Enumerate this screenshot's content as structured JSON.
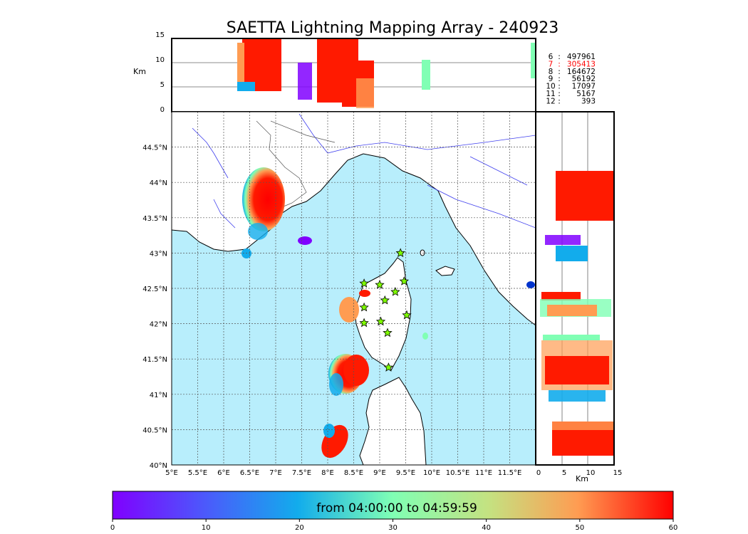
{
  "title": "SAETTA Lightning Mapping Array - 240923",
  "top_panel": {
    "ylabel": "Km",
    "yticks": [
      "15",
      "10",
      "5",
      "0"
    ]
  },
  "right_panel": {
    "xlabel": "Km",
    "xticks": [
      "0",
      "5",
      "10",
      "15"
    ]
  },
  "map": {
    "lat_labels": [
      "44.5°N",
      "44°N",
      "43.5°N",
      "43°N",
      "42.5°N",
      "42°N",
      "41.5°N",
      "41°N",
      "40.5°N",
      "40°N"
    ],
    "lon_labels": [
      "5°E",
      "5.5°E",
      "6°E",
      "6.5°E",
      "7°E",
      "7.5°E",
      "8°E",
      "8.5°E",
      "9°E",
      "9.5°E",
      "10°E",
      "10.5°E",
      "11°E",
      "11.5°E"
    ],
    "lon_range": [
      5,
      12
    ],
    "lat_range": [
      40,
      45
    ],
    "sea_color": "#b8eefc",
    "land_color": "#ffffff",
    "river_color": "#4040ee",
    "station_marker": "star-icon",
    "station_color": "#7fff00"
  },
  "legend": [
    {
      "station": "6",
      "count": "497961",
      "color": "#000000"
    },
    {
      "station": "7",
      "count": "305413",
      "color": "#ff0000"
    },
    {
      "station": "8",
      "count": "164672",
      "color": "#000000"
    },
    {
      "station": "9",
      "count": "56192",
      "color": "#000000"
    },
    {
      "station": "10",
      "count": "17097",
      "color": "#000000"
    },
    {
      "station": "11",
      "count": "5167",
      "color": "#000000"
    },
    {
      "station": "12",
      "count": "393",
      "color": "#000000"
    }
  ],
  "colorbar": {
    "label": "from 04:00:00 to 04:59:59",
    "ticks": [
      "0",
      "10",
      "20",
      "30",
      "40",
      "50",
      "60"
    ],
    "range": [
      0,
      60
    ],
    "colormap": "rainbow"
  }
}
